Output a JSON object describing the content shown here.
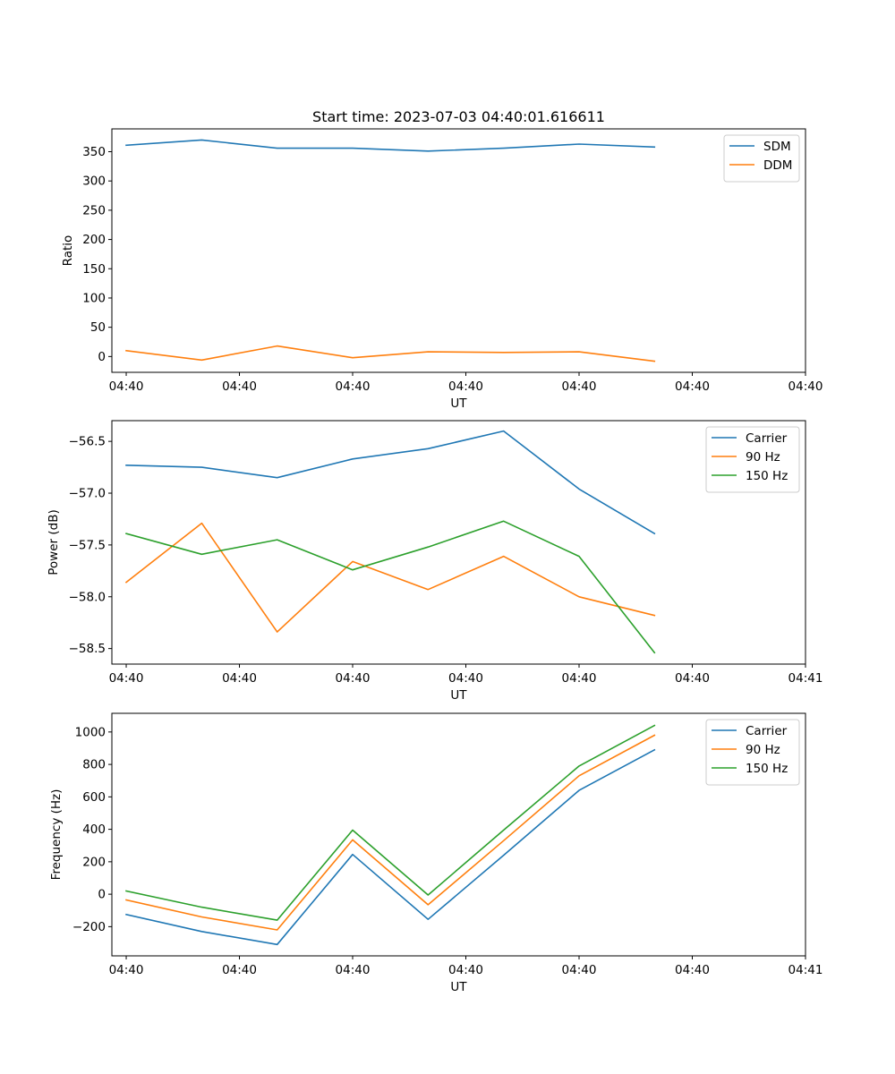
{
  "figure_title": "Start time: 2023-07-03 04:40:01.616611",
  "chart_data": [
    {
      "type": "line",
      "xlabel": "UT",
      "ylabel": "Ratio",
      "x": [
        1,
        2,
        3,
        4,
        5,
        6,
        7,
        8
      ],
      "xlim": [
        0.81,
        10.0
      ],
      "xticks": [
        1.0,
        2.5,
        4.0,
        5.5,
        7.0,
        8.5,
        10.0
      ],
      "xtick_labels": [
        "04:40",
        "04:40",
        "04:40",
        "04:40",
        "04:40",
        "04:40",
        "04:40"
      ],
      "ylim": [
        -27,
        389
      ],
      "yticks": [
        0,
        50,
        100,
        150,
        200,
        250,
        300,
        350
      ],
      "ytick_labels": [
        "0",
        "50",
        "100",
        "150",
        "200",
        "250",
        "300",
        "350"
      ],
      "legend_position": "top-right",
      "series": [
        {
          "name": "SDM",
          "color": "#1f77b4",
          "values": [
            361,
            370,
            356,
            356,
            351,
            356,
            363,
            358
          ]
        },
        {
          "name": "DDM",
          "color": "#ff7f0e",
          "values": [
            10,
            -6,
            18,
            -2,
            8,
            7,
            8,
            -8
          ]
        }
      ]
    },
    {
      "type": "line",
      "xlabel": "UT",
      "ylabel": "Power (dB)",
      "x": [
        1,
        2,
        3,
        4,
        5,
        6,
        7,
        8
      ],
      "xlim": [
        0.81,
        10.0
      ],
      "xticks": [
        1.0,
        2.5,
        4.0,
        5.5,
        7.0,
        8.5,
        10.0
      ],
      "xtick_labels": [
        "04:40",
        "04:40",
        "04:40",
        "04:40",
        "04:40",
        "04:40",
        "04:41"
      ],
      "ylim": [
        -58.65,
        -56.3
      ],
      "yticks": [
        -58.5,
        -58.0,
        -57.5,
        -57.0,
        -56.5
      ],
      "ytick_labels": [
        "−58.5",
        "−58.0",
        "−57.5",
        "−57.0",
        "−56.5"
      ],
      "legend_position": "top-right",
      "series": [
        {
          "name": "Carrier",
          "color": "#1f77b4",
          "values": [
            -56.73,
            -56.75,
            -56.85,
            -56.67,
            -56.57,
            -56.4,
            -56.96,
            -57.39
          ]
        },
        {
          "name": "90 Hz",
          "color": "#ff7f0e",
          "values": [
            -57.86,
            -57.29,
            -58.34,
            -57.66,
            -57.93,
            -57.61,
            -58.0,
            -58.18
          ]
        },
        {
          "name": "150 Hz",
          "color": "#2ca02c",
          "values": [
            -57.39,
            -57.59,
            -57.45,
            -57.74,
            -57.52,
            -57.27,
            -57.61,
            -58.54
          ]
        }
      ]
    },
    {
      "type": "line",
      "xlabel": "UT",
      "ylabel": "Frequency (Hz)",
      "x": [
        1,
        2,
        3,
        4,
        5,
        6,
        7,
        8
      ],
      "xlim": [
        0.81,
        10.0
      ],
      "xticks": [
        1.0,
        2.5,
        4.0,
        5.5,
        7.0,
        8.5,
        10.0
      ],
      "xtick_labels": [
        "04:40",
        "04:40",
        "04:40",
        "04:40",
        "04:40",
        "04:40",
        "04:41"
      ],
      "ylim": [
        -380,
        1115
      ],
      "yticks": [
        -200,
        0,
        200,
        400,
        600,
        800,
        1000
      ],
      "ytick_labels": [
        "−200",
        "0",
        "200",
        "400",
        "600",
        "800",
        "1000"
      ],
      "legend_position": "top-right",
      "series": [
        {
          "name": "Carrier",
          "color": "#1f77b4",
          "values": [
            -125,
            -230,
            -310,
            245,
            -155,
            240,
            640,
            890
          ]
        },
        {
          "name": "90 Hz",
          "color": "#ff7f0e",
          "values": [
            -35,
            -140,
            -220,
            335,
            -65,
            330,
            730,
            980
          ]
        },
        {
          "name": "150 Hz",
          "color": "#2ca02c",
          "values": [
            20,
            -80,
            -160,
            395,
            -5,
            395,
            790,
            1040
          ]
        }
      ]
    }
  ]
}
